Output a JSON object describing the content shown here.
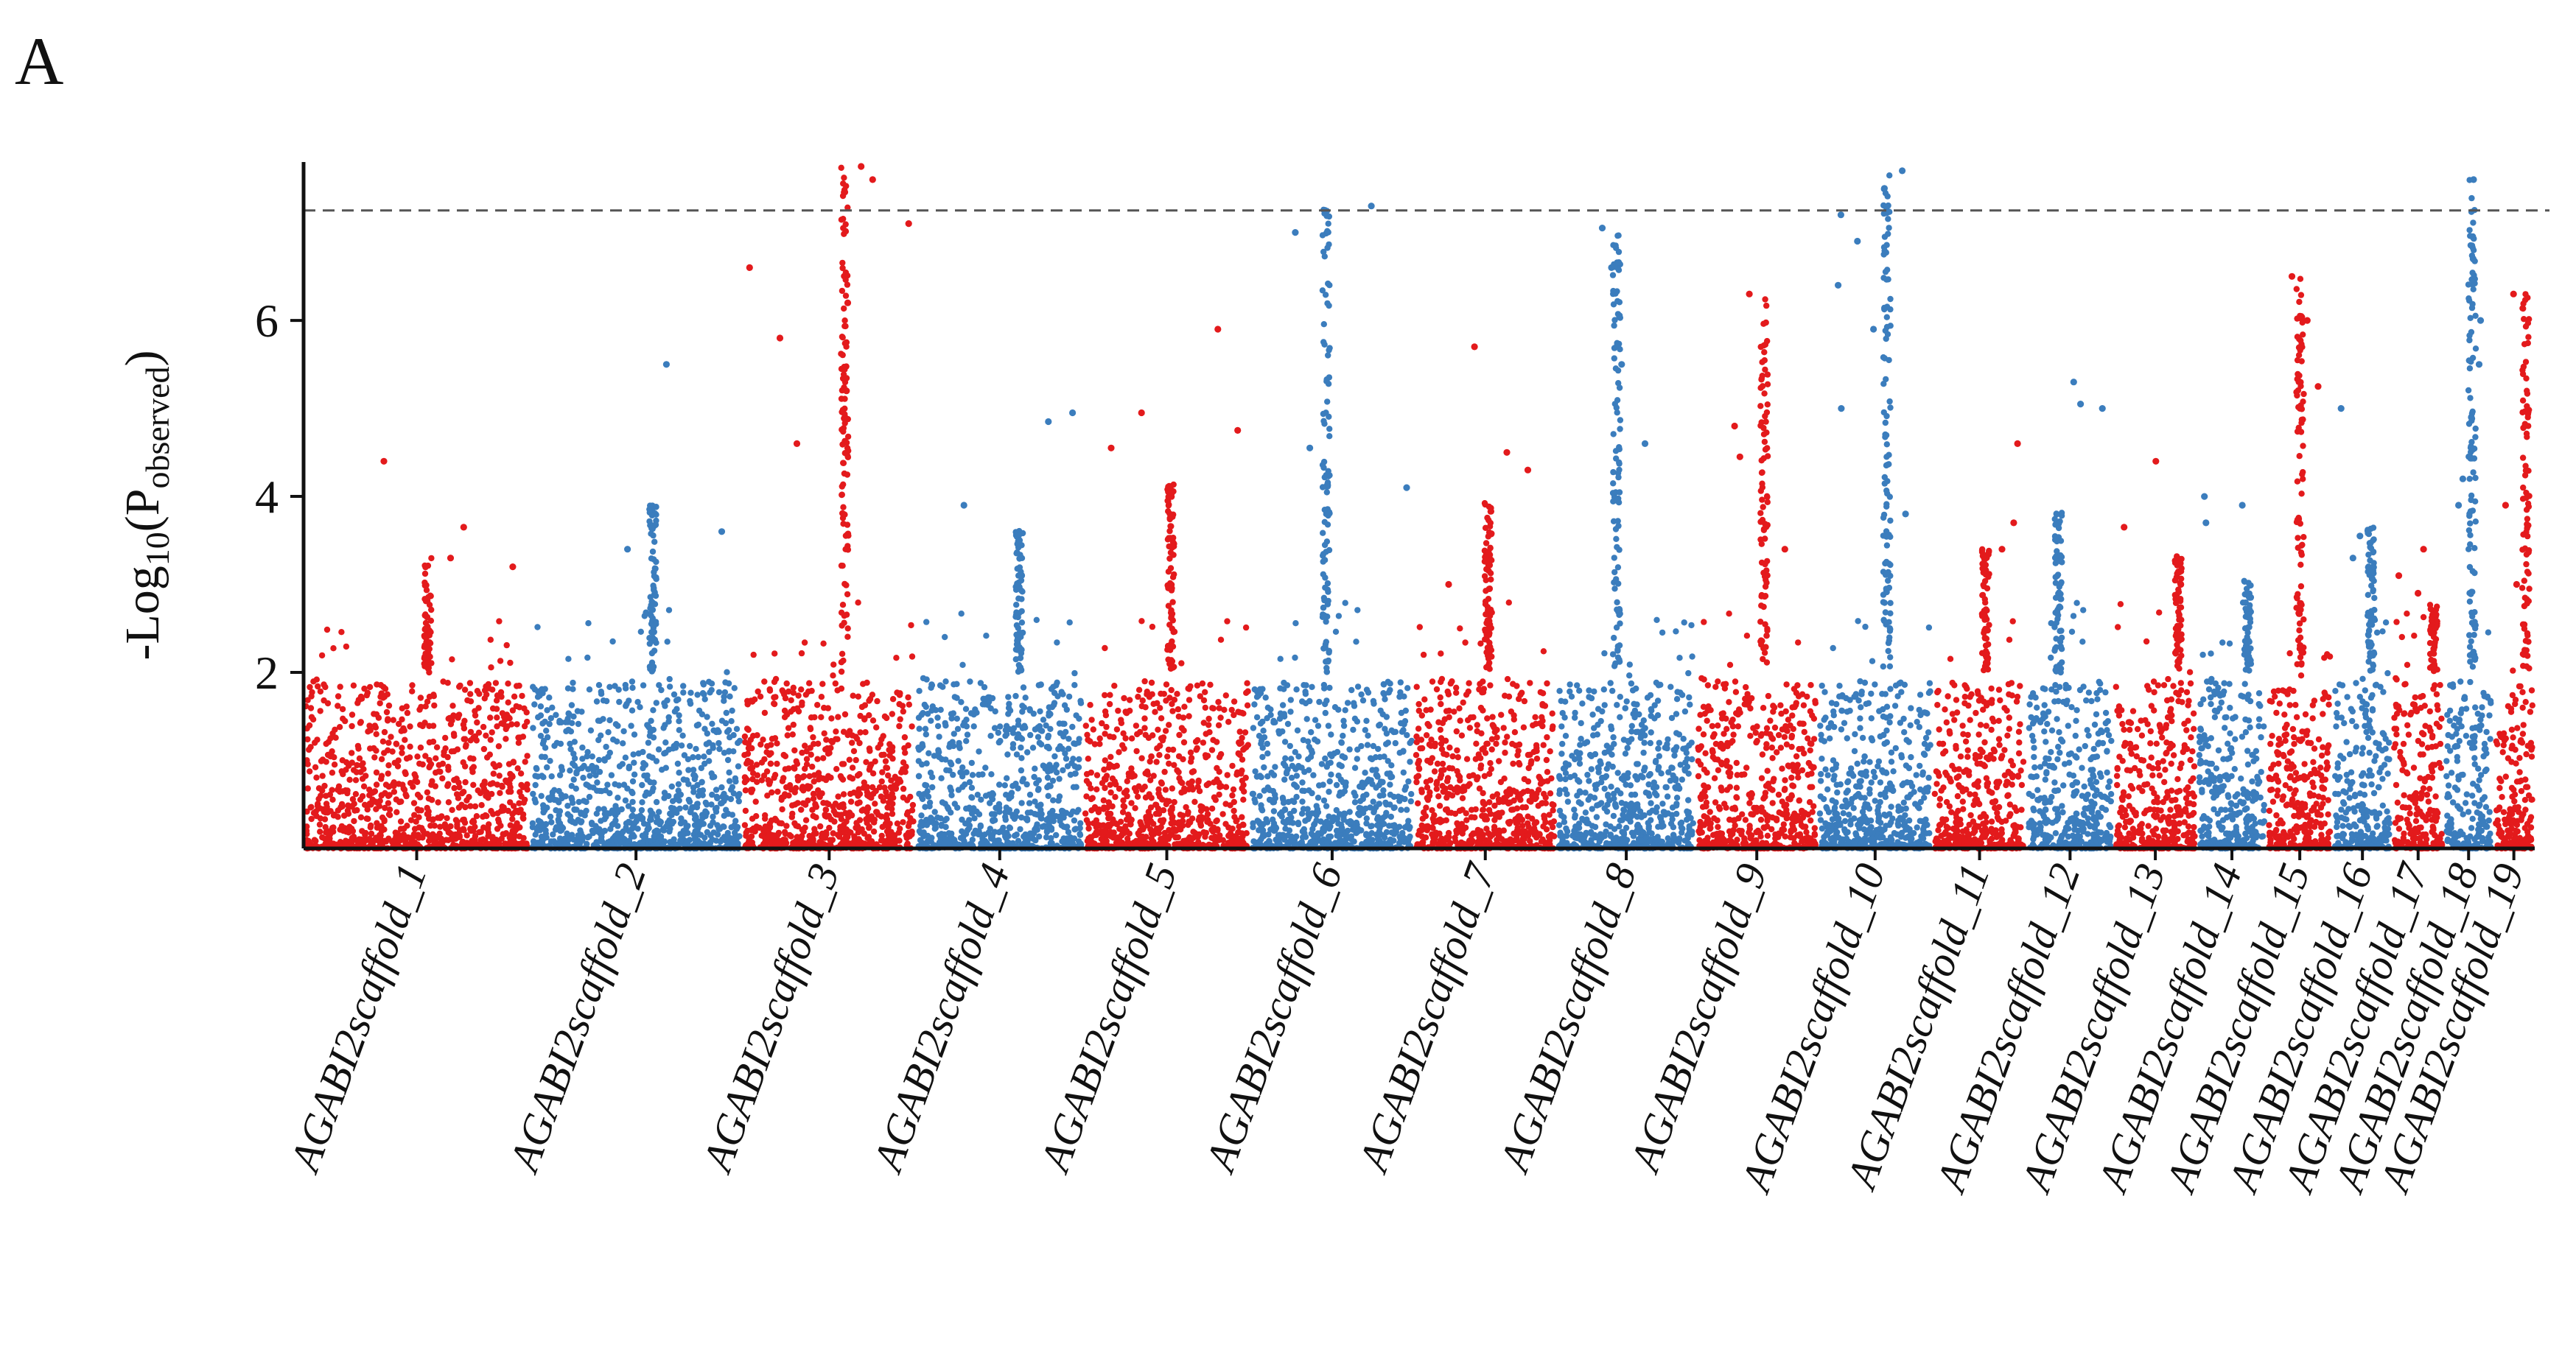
{
  "panel_label": "A",
  "colors": {
    "red": "#e31a1c",
    "blue": "#3b7dbd",
    "axis": "#111111",
    "threshold": "#555555"
  },
  "chart_data": {
    "type": "scatter",
    "subtype": "manhattan",
    "title": "",
    "xlabel": "",
    "ylabel_parts": {
      "prefix": "-Log",
      "sub1": "10",
      "mid": "(P",
      "sub2": "observed",
      "suffix": ")"
    },
    "ylim": [
      0,
      7.8
    ],
    "yticks": [
      2,
      4,
      6
    ],
    "threshold": 7.25,
    "grid": false,
    "legend": "none",
    "color_cycle": [
      "red",
      "blue"
    ],
    "chromosomes": [
      {
        "label": "AGABI2scaffold_1",
        "size": 130,
        "peak_max": 4.4,
        "top": [
          4.4,
          3.65,
          3.3,
          3.2
        ]
      },
      {
        "label": "AGABI2scaffold_2",
        "size": 122,
        "peak_max": 5.5,
        "top": [
          5.5,
          3.6,
          3.4
        ]
      },
      {
        "label": "AGABI2scaffold_3",
        "size": 100,
        "peak_max": 7.75,
        "top": [
          7.75,
          7.6,
          7.1,
          6.6,
          6.2,
          5.8,
          5.2,
          4.6
        ]
      },
      {
        "label": "AGABI2scaffold_4",
        "size": 96,
        "peak_max": 4.95,
        "top": [
          4.95,
          4.85,
          3.9,
          3.5
        ]
      },
      {
        "label": "AGABI2scaffold_5",
        "size": 96,
        "peak_max": 5.9,
        "top": [
          5.9,
          4.95,
          4.75,
          4.55
        ]
      },
      {
        "label": "AGABI2scaffold_6",
        "size": 94,
        "peak_max": 7.3,
        "top": [
          7.3,
          7.0,
          4.55,
          4.1
        ]
      },
      {
        "label": "AGABI2scaffold_7",
        "size": 82,
        "peak_max": 5.7,
        "top": [
          5.7,
          4.5,
          4.3,
          3.0
        ]
      },
      {
        "label": "AGABI2scaffold_8",
        "size": 80,
        "peak_max": 7.05,
        "top": [
          7.05,
          6.6,
          5.5,
          4.6
        ]
      },
      {
        "label": "AGABI2scaffold_9",
        "size": 70,
        "peak_max": 6.3,
        "top": [
          6.3,
          4.8,
          4.45,
          3.4
        ]
      },
      {
        "label": "AGABI2scaffold_10",
        "size": 66,
        "peak_max": 7.7,
        "top": [
          7.7,
          7.5,
          7.2,
          6.9,
          6.4,
          5.9,
          5.0,
          3.8
        ]
      },
      {
        "label": "AGABI2scaffold_11",
        "size": 54,
        "peak_max": 4.6,
        "top": [
          4.6,
          3.7,
          3.4
        ]
      },
      {
        "label": "AGABI2scaffold_12",
        "size": 50,
        "peak_max": 5.3,
        "top": [
          5.3,
          5.05,
          5.0
        ]
      },
      {
        "label": "AGABI2scaffold_13",
        "size": 48,
        "peak_max": 4.4,
        "top": [
          4.4,
          3.65,
          3.0
        ]
      },
      {
        "label": "AGABI2scaffold_14",
        "size": 40,
        "peak_max": 4.0,
        "top": [
          4.0,
          3.9,
          3.7
        ]
      },
      {
        "label": "AGABI2scaffold_15",
        "size": 38,
        "peak_max": 6.5,
        "top": [
          6.5,
          6.0,
          5.25
        ]
      },
      {
        "label": "AGABI2scaffold_16",
        "size": 34,
        "peak_max": 5.0,
        "top": [
          5.0,
          3.55,
          3.3
        ]
      },
      {
        "label": "AGABI2scaffold_17",
        "size": 30,
        "peak_max": 3.4,
        "top": [
          3.4,
          3.1,
          2.9
        ]
      },
      {
        "label": "AGABI2scaffold_18",
        "size": 28,
        "peak_max": 7.6,
        "top": [
          7.6,
          6.7,
          6.0,
          5.5,
          4.9,
          4.2,
          3.9
        ]
      },
      {
        "label": "AGABI2scaffold_19",
        "size": 24,
        "peak_max": 6.3,
        "top": [
          6.3,
          3.9,
          3.0
        ]
      }
    ]
  }
}
